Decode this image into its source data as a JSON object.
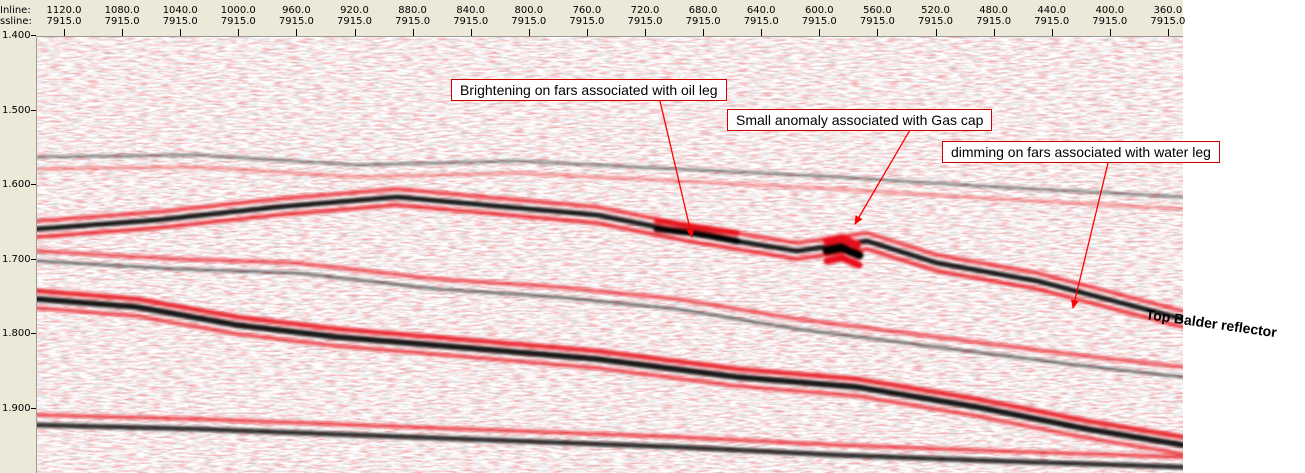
{
  "header": {
    "inline_label": "Inline:",
    "xline_label": "ssline:",
    "inline_ticks": [
      "1120.0",
      "1080.0",
      "1040.0",
      "1000.0",
      "960.0",
      "920.0",
      "880.0",
      "840.0",
      "800.0",
      "760.0",
      "720.0",
      "680.0",
      "640.0",
      "600.0",
      "560.0",
      "520.0",
      "480.0",
      "440.0",
      "400.0",
      "360.0"
    ],
    "xline_ticks": [
      "7915.0",
      "7915.0",
      "7915.0",
      "7915.0",
      "7915.0",
      "7915.0",
      "7915.0",
      "7915.0",
      "7915.0",
      "7915.0",
      "7915.0",
      "7915.0",
      "7915.0",
      "7915.0",
      "7915.0",
      "7915.0",
      "7915.0",
      "7915.0",
      "7915.0",
      "7915.0"
    ]
  },
  "time_axis": {
    "labels": [
      "1.400",
      "1.500",
      "1.600",
      "1.700",
      "1.800",
      "1.900"
    ]
  },
  "annotations": {
    "oil_leg": "Brightening on fars associated with oil leg",
    "gas_cap": "Small anomaly associated with Gas cap",
    "water_leg": "dimming on fars associated with water leg",
    "reflector": "Top Balder reflector"
  },
  "colors": {
    "positive_amplitude": "#e8101a",
    "negative_amplitude": "#000000",
    "annotation_border": "#d00000",
    "panel_background": "#ece9d8"
  },
  "icons": [
    "none"
  ]
}
